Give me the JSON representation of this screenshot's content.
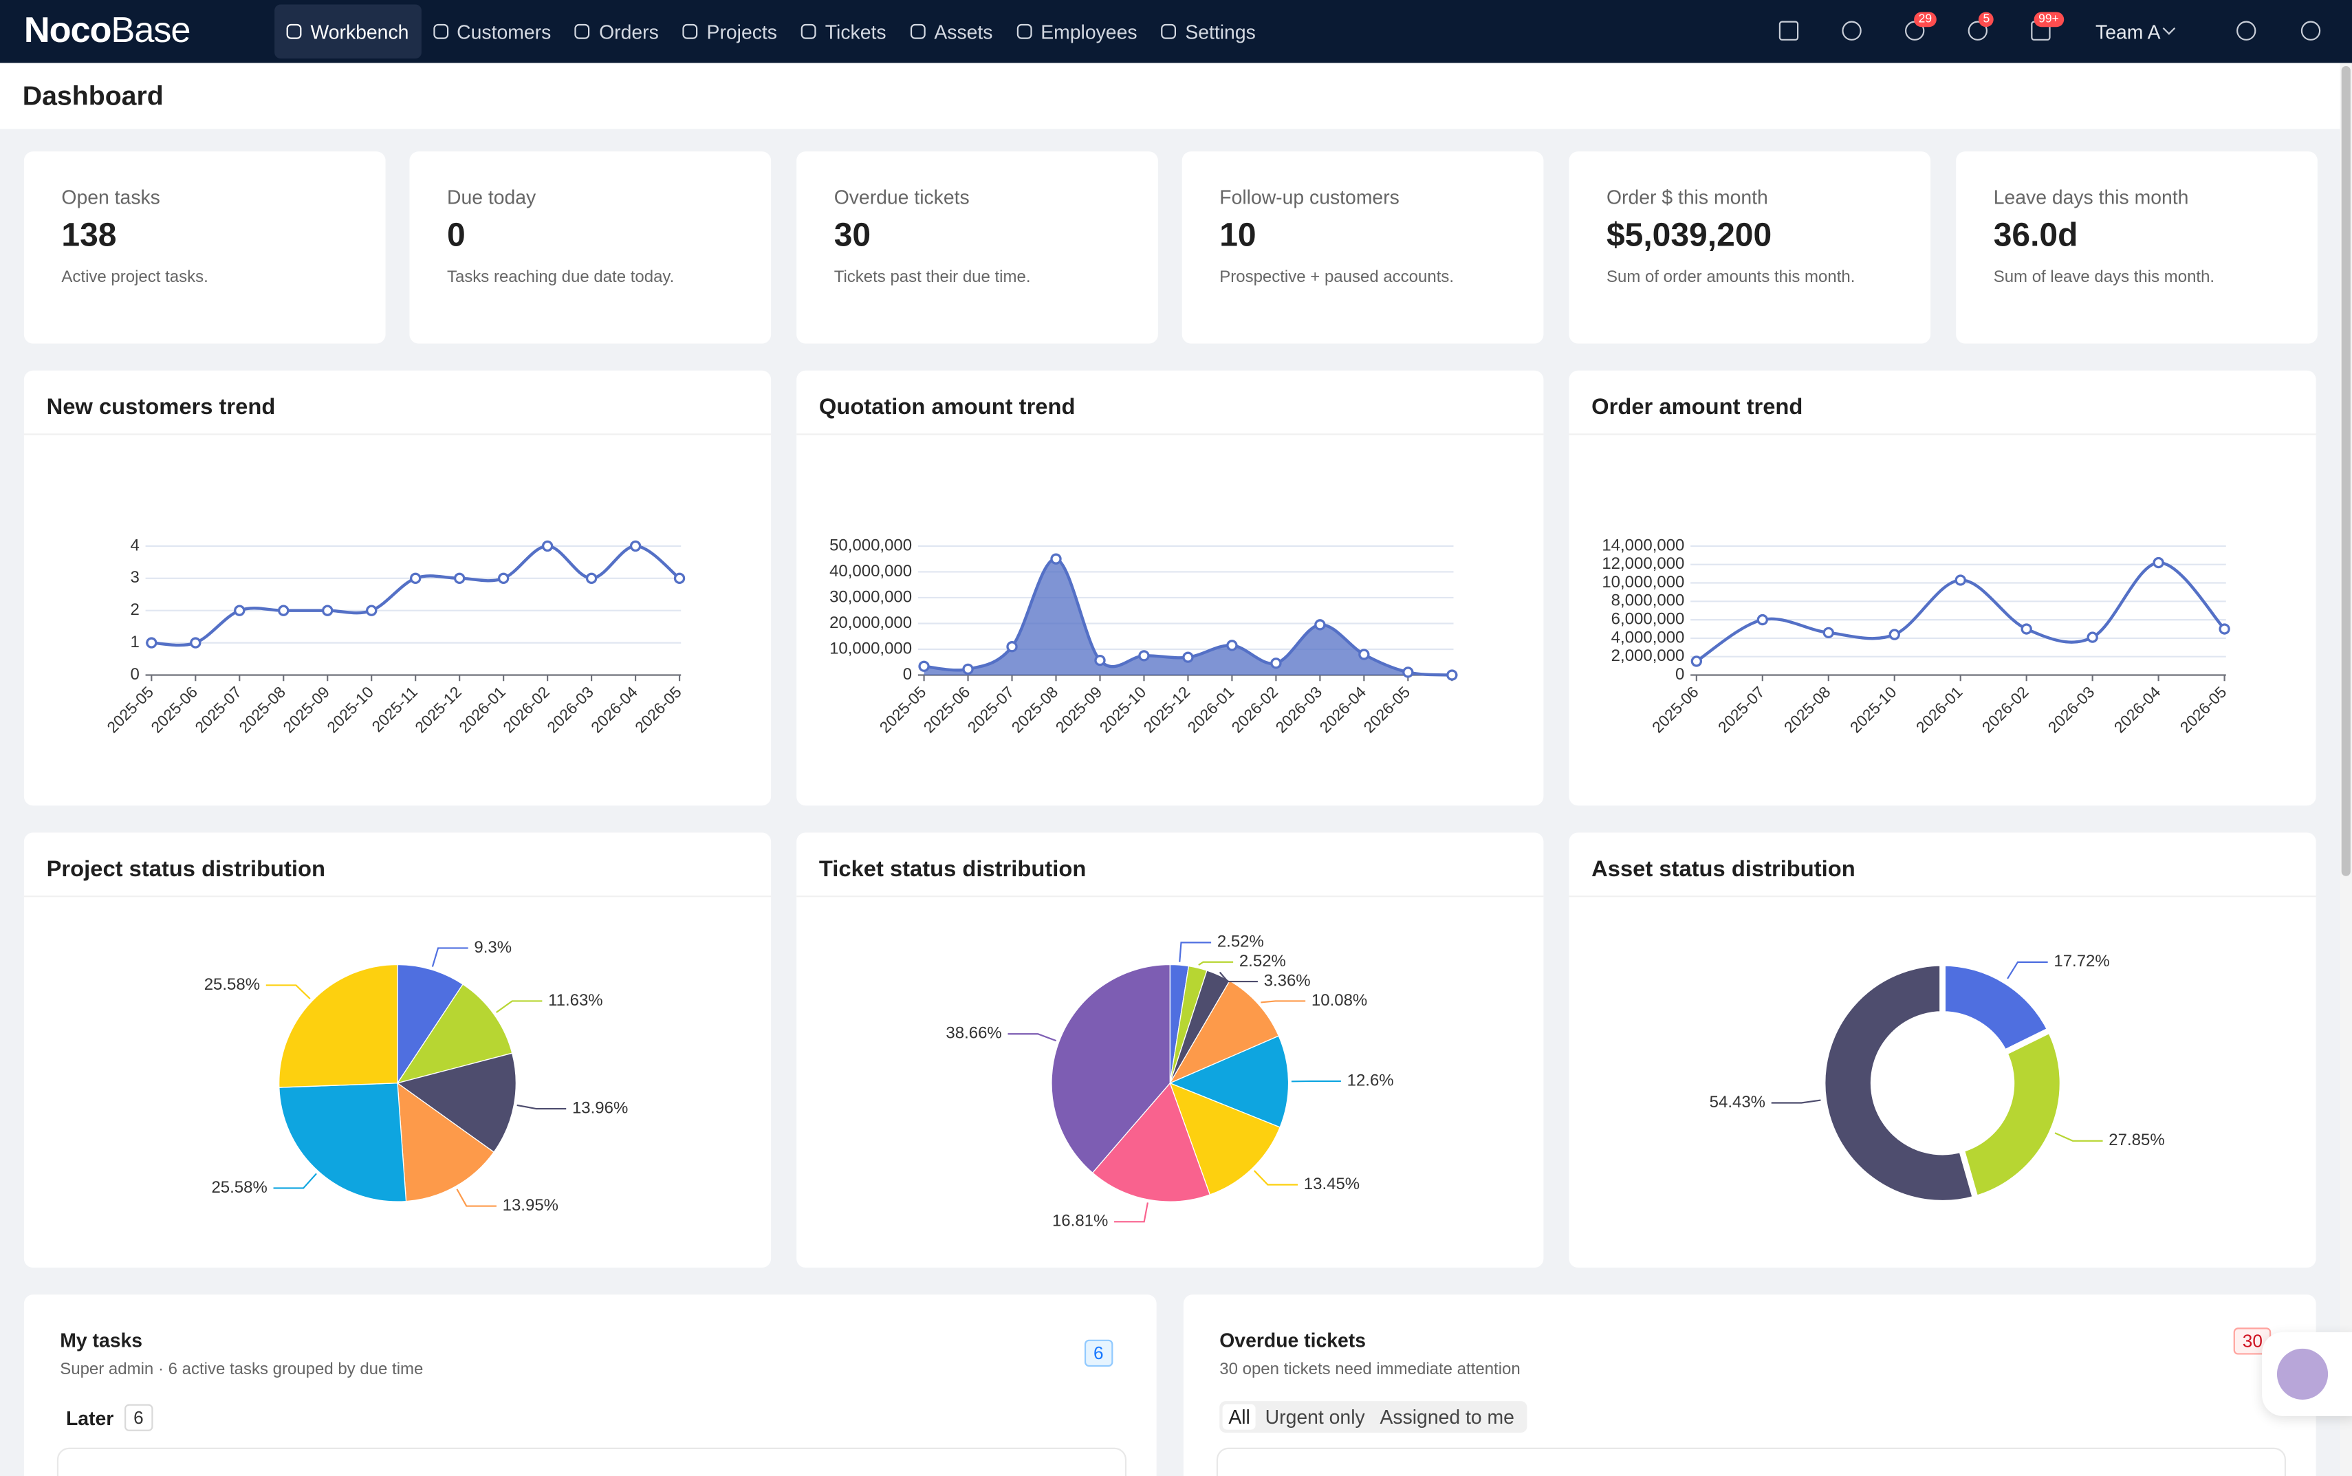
{
  "nav": {
    "brand_bold": "Noco",
    "brand_light": "Base",
    "items": [
      "Workbench",
      "Customers",
      "Orders",
      "Projects",
      "Tickets",
      "Assets",
      "Employees",
      "Settings"
    ],
    "badges": [
      "29",
      "5",
      "99+"
    ],
    "team": "Team A"
  },
  "page_title": "Dashboard",
  "stats": [
    {
      "label": "Open tasks",
      "value": 138,
      "note": "Active project tasks."
    },
    {
      "label": "Due today",
      "value": 0,
      "note": "Tasks reaching due date today."
    },
    {
      "label": "Overdue tickets",
      "value": 30,
      "note": "Tickets past their due time."
    },
    {
      "label": "Follow-up customers",
      "value": 10,
      "note": "Prospective + paused accounts."
    },
    {
      "label": "Order $ this month",
      "value": "$5,039,200",
      "note": "Sum of order amounts this month."
    },
    {
      "label": "Leave days this month",
      "value": "36.0d",
      "note": "Sum of leave days this month."
    }
  ],
  "chart_data": [
    {
      "type": "line",
      "title": "New customers trend",
      "color": "#5470c6",
      "categories": [
        "2025-05",
        "2025-06",
        "2025-07",
        "2025-08",
        "2025-09",
        "2025-10",
        "2025-11",
        "2025-12",
        "2026-01",
        "2026-02",
        "2026-03",
        "2026-04",
        "2026-05"
      ],
      "values": [
        1,
        1,
        2,
        2,
        2,
        2,
        3,
        3,
        3,
        4,
        3,
        4,
        3
      ],
      "ylim": [
        0,
        4
      ],
      "yticks": [
        0,
        1,
        2,
        3,
        4
      ],
      "grid": true
    },
    {
      "type": "area",
      "title": "Quotation amount trend",
      "color": "#5470c6",
      "categories": [
        "2025-05",
        "2025-06",
        "2025-07",
        "2025-08",
        "2025-09",
        "2025-10",
        "2025-12",
        "2026-01",
        "2026-02",
        "2026-03",
        "2026-04",
        "2026-05",
        null
      ],
      "values": [
        3400000,
        2300000,
        11000000,
        45000000,
        5700000,
        7500000,
        6900000,
        11500000,
        4600000,
        19500000,
        8000000,
        1100000,
        0
      ],
      "ylim": [
        0,
        50000000
      ],
      "yticks": [
        0,
        {
          "value": 10000000,
          "label": "10,000,000"
        },
        {
          "value": 20000000,
          "label": "20,000,000"
        },
        {
          "value": 30000000,
          "label": "30,000,000"
        },
        {
          "value": 40000000,
          "label": "40,000,000"
        },
        {
          "value": 50000000,
          "label": "50,000,000"
        }
      ],
      "grid": true
    },
    {
      "type": "line",
      "title": "Order amount trend",
      "color": "#5470c6",
      "categories": [
        "2025-06",
        "2025-07",
        "2025-08",
        "2025-10",
        "2026-01",
        "2026-02",
        "2026-03",
        "2026-04",
        "2026-05"
      ],
      "values": [
        1500000,
        6000000,
        4600000,
        4400000,
        10300000,
        5000000,
        4100000,
        12200000,
        5000000
      ],
      "ylim": [
        0,
        14000000
      ],
      "yticks": [
        0,
        {
          "value": 2000000,
          "label": "2,000,000"
        },
        {
          "value": 4000000,
          "label": "4,000,000"
        },
        {
          "value": 6000000,
          "label": "6,000,000"
        },
        {
          "value": 8000000,
          "label": "8,000,000"
        },
        {
          "value": 10000000,
          "label": "10,000,000"
        },
        {
          "value": 12000000,
          "label": "12,000,000"
        },
        {
          "value": 14000000,
          "label": "14,000,000"
        }
      ],
      "grid": true
    },
    {
      "type": "pie",
      "title": "Project status distribution",
      "values": [
        9.3,
        11.63,
        13.96,
        13.95,
        25.58,
        25.58
      ],
      "value_labels": [
        "9.3%",
        "11.63%",
        "13.96%",
        "13.95%",
        "25.58%",
        "25.58%"
      ],
      "colors": [
        "#4f6fe0",
        "#b7d632",
        "#4e4d6e",
        "#fd9a4a",
        "#0ea5e0",
        "#fdd00f"
      ]
    },
    {
      "type": "pie",
      "title": "Ticket status distribution",
      "values": [
        2.52,
        2.52,
        3.36,
        10.08,
        12.6,
        13.45,
        16.81,
        38.66
      ],
      "value_labels": [
        "2.52%",
        "2.52%",
        "3.36%",
        "10.08%",
        "12.6%",
        "13.45%",
        "16.81%",
        "38.66%"
      ],
      "colors": [
        "#4f6fe0",
        "#b7d632",
        "#4e4d6e",
        "#fd9a4a",
        "#0ea5e0",
        "#fdd00f",
        "#f9628e",
        "#7d5db3"
      ]
    },
    {
      "type": "donut",
      "title": "Asset status distribution",
      "values": [
        17.72,
        27.85,
        54.43
      ],
      "value_labels": [
        "17.72%",
        "27.85%",
        "54.43%"
      ],
      "colors": [
        "#4f6fe0",
        "#b7d632",
        "#4e4d6e"
      ]
    }
  ],
  "tasks": {
    "title": "My tasks",
    "subtitle": "Super admin · 6 active tasks grouped by due time",
    "count": 6,
    "group": "Later",
    "group_count": 6
  },
  "overdue": {
    "title": "Overdue tickets",
    "subtitle": "30 open tickets need immediate attention",
    "count": 30,
    "tabs": [
      "All",
      "Urgent only",
      "Assigned to me"
    ]
  }
}
